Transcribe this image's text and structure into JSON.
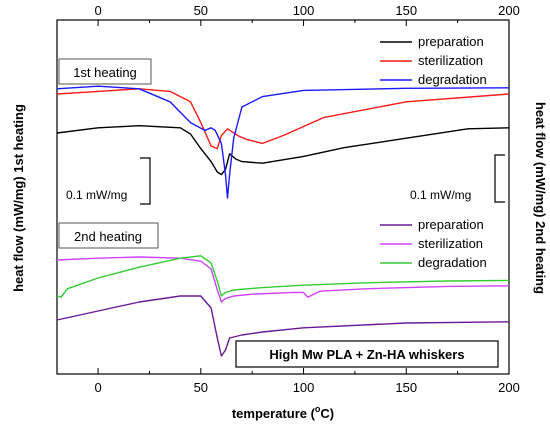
{
  "chart_data": {
    "type": "line",
    "xlabel_parts": [
      "temperature (",
      "o",
      "C)"
    ],
    "ylabel_left": "heat flow (mW/mg) 1st heating",
    "ylabel_right": "heat flow (mW/mg) 2nd heating",
    "xlim": [
      -20,
      200
    ],
    "x_ticks": [
      0,
      50,
      100,
      150,
      200
    ],
    "grid": false,
    "annotations": {
      "first_heating": "1st heating",
      "second_heating": "2nd heating",
      "scale_left": "0.1 mW/mg",
      "scale_right": "0.1 mW/mg",
      "sample": "High Mw PLA + Zn-HA whiskers"
    },
    "colors": {
      "preparation_1st": "#000000",
      "sterilization_1st": "#ff1a1a",
      "degradation_1st": "#1a1aff",
      "preparation_2nd": "#6a1b9a",
      "sterilization_2nd": "#d040ff",
      "degradation_2nd": "#33cc33"
    },
    "panels": [
      {
        "id": "first",
        "legend": [
          "preparation",
          "sterilization",
          "degradation"
        ],
        "series": [
          {
            "name": "preparation",
            "color_key": "preparation_1st",
            "x": [
              -20,
              0,
              20,
              40,
              45,
              50,
              55,
              58,
              60,
              62,
              64,
              67,
              70,
              80,
              100,
              120,
              150,
              180,
              200
            ],
            "y": [
              0.0,
              0.01,
              0.014,
              0.01,
              -0.002,
              -0.03,
              -0.055,
              -0.075,
              -0.08,
              -0.07,
              -0.04,
              -0.05,
              -0.055,
              -0.058,
              -0.045,
              -0.028,
              -0.01,
              0.008,
              0.01
            ]
          },
          {
            "name": "sterilization",
            "color_key": "sterilization_1st",
            "x": [
              -20,
              0,
              20,
              35,
              45,
              50,
              55,
              58,
              60,
              63,
              68,
              72,
              80,
              90,
              110,
              150,
              200
            ],
            "y": [
              0.075,
              0.08,
              0.085,
              0.08,
              0.06,
              0.02,
              -0.025,
              -0.03,
              -0.005,
              0.008,
              -0.005,
              -0.012,
              -0.02,
              -0.005,
              0.03,
              0.06,
              0.075
            ]
          },
          {
            "name": "degradation",
            "color_key": "degradation_1st",
            "x": [
              -20,
              0,
              20,
              35,
              45,
              52,
              55,
              57,
              60,
              62,
              63,
              64,
              66,
              70,
              80,
              100,
              150,
              200
            ],
            "y": [
              0.085,
              0.09,
              0.085,
              0.06,
              0.02,
              0.005,
              0.01,
              0.005,
              -0.02,
              -0.08,
              -0.125,
              -0.08,
              -0.01,
              0.05,
              0.07,
              0.082,
              0.086,
              0.087
            ]
          }
        ]
      },
      {
        "id": "second",
        "legend": [
          "preparation",
          "sterilization",
          "degradation"
        ],
        "series": [
          {
            "name": "preparation",
            "color_key": "preparation_2nd",
            "x": [
              -20,
              0,
              20,
              40,
              50,
              55,
              58,
              60,
              62,
              64,
              70,
              80,
              100,
              150,
              200
            ],
            "y": [
              0.0,
              0.015,
              0.03,
              0.04,
              0.04,
              0.02,
              -0.03,
              -0.06,
              -0.05,
              -0.03,
              -0.025,
              -0.02,
              -0.013,
              -0.005,
              -0.003
            ]
          },
          {
            "name": "sterilization",
            "color_key": "sterilization_2nd",
            "x": [
              -20,
              0,
              20,
              40,
              50,
              55,
              58,
              60,
              62,
              66,
              75,
              95,
              100,
              102,
              108,
              130,
              170,
              200
            ],
            "y": [
              0.1,
              0.103,
              0.105,
              0.103,
              0.098,
              0.085,
              0.05,
              0.03,
              0.036,
              0.04,
              0.043,
              0.046,
              0.046,
              0.038,
              0.048,
              0.052,
              0.056,
              0.057
            ]
          },
          {
            "name": "degradation",
            "color_key": "degradation_2nd",
            "x": [
              -20,
              -18,
              -15,
              0,
              20,
              40,
              50,
              55,
              58,
              60,
              62,
              66,
              80,
              100,
              130,
              170,
              200
            ],
            "y": [
              0.04,
              0.038,
              0.052,
              0.07,
              0.088,
              0.103,
              0.107,
              0.095,
              0.065,
              0.04,
              0.046,
              0.05,
              0.054,
              0.058,
              0.062,
              0.065,
              0.066
            ]
          }
        ]
      }
    ]
  }
}
